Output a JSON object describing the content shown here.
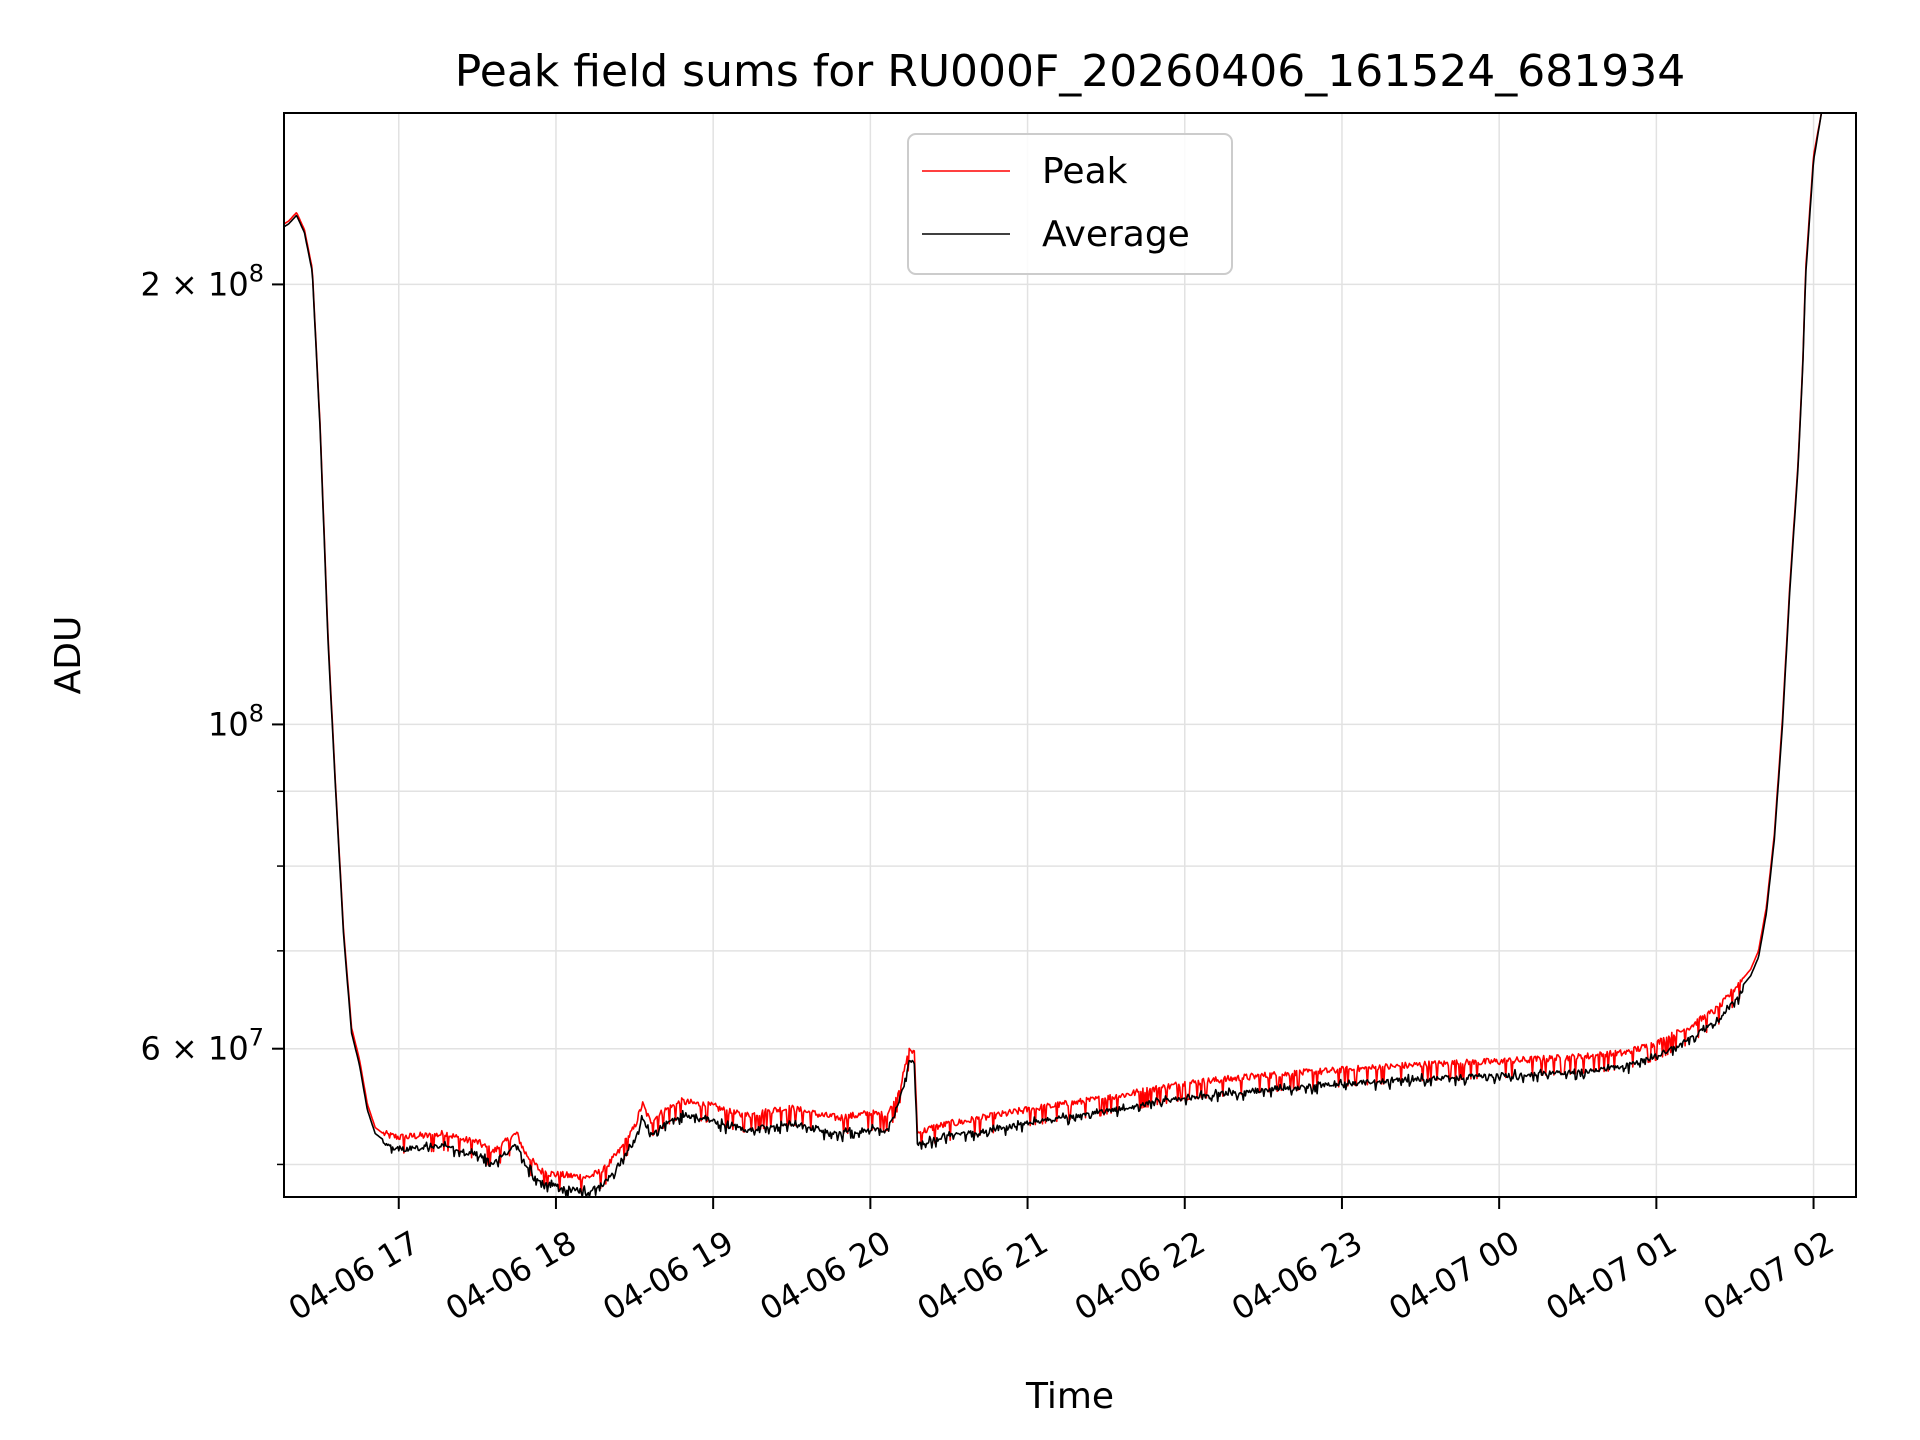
{
  "chart_data": {
    "type": "line",
    "title": "Peak field sums for RU000F_20260406_161524_681934",
    "xlabel": "Time",
    "ylabel": "ADU",
    "yscale": "log",
    "grid": true,
    "legend_position": "top-center",
    "xlim": [
      16.27,
      26.27
    ],
    "ylim": [
      47500000,
      262000000
    ],
    "x_ticks": [
      {
        "value": 17,
        "label": "04-06 17"
      },
      {
        "value": 18,
        "label": "04-06 18"
      },
      {
        "value": 19,
        "label": "04-06 19"
      },
      {
        "value": 20,
        "label": "04-06 20"
      },
      {
        "value": 21,
        "label": "04-06 21"
      },
      {
        "value": 22,
        "label": "04-06 22"
      },
      {
        "value": 23,
        "label": "04-06 23"
      },
      {
        "value": 24,
        "label": "04-07 00"
      },
      {
        "value": 25,
        "label": "04-07 01"
      },
      {
        "value": 26,
        "label": "04-07 02"
      }
    ],
    "y_ticks": [
      {
        "value": 60000000,
        "base": "6",
        "sep": " × ",
        "mant": "10",
        "exp": "7"
      },
      {
        "value": 100000000,
        "base": "",
        "sep": "",
        "mant": "10",
        "exp": "8"
      },
      {
        "value": 200000000,
        "base": "2",
        "sep": " × ",
        "mant": "10",
        "exp": "8"
      }
    ],
    "y_minor_ticks": [
      50000000,
      70000000,
      80000000,
      90000000
    ],
    "series": [
      {
        "name": "Peak",
        "color": "#ff0000",
        "noise": "peak",
        "x": [
          16.27,
          16.3,
          16.35,
          16.4,
          16.45,
          16.5,
          16.55,
          16.6,
          16.65,
          16.7,
          16.75,
          16.8,
          16.85,
          16.9,
          16.95,
          17.0,
          17.05,
          17.1,
          17.2,
          17.3,
          17.4,
          17.5,
          17.6,
          17.7,
          17.75,
          17.8,
          17.9,
          18.0,
          18.1,
          18.2,
          18.3,
          18.4,
          18.5,
          18.55,
          18.6,
          18.7,
          18.8,
          18.9,
          19.0,
          19.1,
          19.2,
          19.3,
          19.4,
          19.5,
          19.6,
          19.7,
          19.8,
          19.9,
          20.0,
          20.1,
          20.15,
          20.2,
          20.25,
          20.28,
          20.3,
          20.4,
          20.5,
          20.6,
          20.8,
          21.0,
          21.5,
          22.0,
          22.5,
          23.0,
          23.5,
          24.0,
          24.5,
          24.8,
          25.0,
          25.2,
          25.4,
          25.5,
          25.6,
          25.65,
          25.7,
          25.75,
          25.8,
          25.85,
          25.9,
          25.93,
          25.95,
          26.0,
          26.05
        ],
        "y": [
          220000000,
          221000000,
          224000000,
          218000000,
          205000000,
          160000000,
          115000000,
          90000000,
          72000000,
          62000000,
          59000000,
          55000000,
          53000000,
          52500000,
          52300000,
          52200000,
          52200000,
          52300000,
          52300000,
          52500000,
          52000000,
          51800000,
          51000000,
          52000000,
          52500000,
          51000000,
          49500000,
          49200000,
          49100000,
          49000000,
          49500000,
          51000000,
          53000000,
          55000000,
          53500000,
          54500000,
          55200000,
          55000000,
          54800000,
          54300000,
          54000000,
          54200000,
          54500000,
          54600000,
          54300000,
          54000000,
          53800000,
          54000000,
          54200000,
          54000000,
          55000000,
          57000000,
          60000000,
          59500000,
          52500000,
          53000000,
          53300000,
          53500000,
          54000000,
          54500000,
          55500000,
          56800000,
          57500000,
          58000000,
          58500000,
          58800000,
          59200000,
          59600000,
          60500000,
          62000000,
          64000000,
          66000000,
          68000000,
          70000000,
          75000000,
          84000000,
          100000000,
          125000000,
          150000000,
          175000000,
          205000000,
          245000000,
          262000000
        ]
      },
      {
        "name": "Average",
        "color": "#000000",
        "noise": "average",
        "x": [
          16.27,
          16.3,
          16.35,
          16.4,
          16.45,
          16.5,
          16.55,
          16.6,
          16.65,
          16.7,
          16.75,
          16.8,
          16.85,
          16.9,
          16.95,
          17.0,
          17.05,
          17.1,
          17.2,
          17.3,
          17.4,
          17.5,
          17.6,
          17.7,
          17.75,
          17.8,
          17.9,
          18.0,
          18.1,
          18.2,
          18.3,
          18.4,
          18.5,
          18.55,
          18.6,
          18.7,
          18.8,
          18.9,
          19.0,
          19.1,
          19.2,
          19.3,
          19.4,
          19.5,
          19.6,
          19.7,
          19.8,
          19.9,
          20.0,
          20.1,
          20.15,
          20.2,
          20.25,
          20.28,
          20.3,
          20.4,
          20.5,
          20.6,
          20.8,
          21.0,
          21.5,
          22.0,
          22.5,
          23.0,
          23.5,
          24.0,
          24.5,
          24.8,
          25.0,
          25.2,
          25.4,
          25.5,
          25.6,
          25.65,
          25.7,
          25.75,
          25.8,
          25.85,
          25.9,
          25.93,
          25.95,
          26.0,
          26.05
        ],
        "y": [
          219000000,
          220000000,
          223000000,
          217000000,
          204000000,
          159000000,
          114000000,
          89500000,
          71500000,
          61500000,
          58500000,
          54500000,
          52500000,
          52000000,
          51800000,
          51700000,
          51600000,
          51700000,
          51800000,
          51900000,
          51500000,
          51200000,
          50500000,
          51500000,
          52000000,
          50500000,
          49000000,
          48700000,
          48500000,
          48300000,
          48800000,
          50300000,
          52300000,
          54300000,
          52800000,
          53800000,
          54500000,
          54300000,
          54000000,
          53500000,
          53200000,
          53400000,
          53600000,
          53700000,
          53400000,
          53100000,
          52900000,
          53100000,
          53300000,
          53200000,
          54300000,
          56500000,
          59500000,
          59000000,
          52000000,
          52400000,
          52700000,
          52900000,
          53300000,
          53800000,
          54800000,
          56000000,
          56700000,
          57200000,
          57700000,
          58000000,
          58300000,
          58800000,
          59800000,
          61300000,
          63300000,
          65300000,
          67300000,
          69300000,
          74300000,
          83300000,
          99000000,
          124000000,
          149000000,
          174000000,
          203000000,
          243000000,
          262000000
        ]
      }
    ]
  }
}
